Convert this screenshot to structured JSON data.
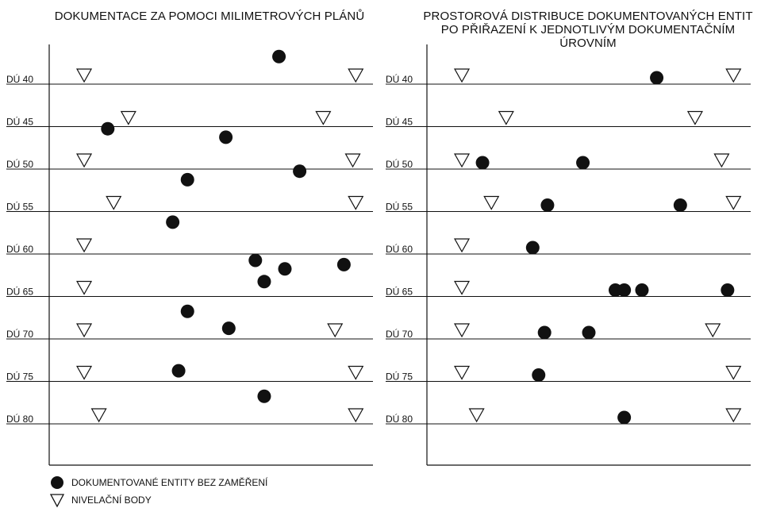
{
  "panels": [
    {
      "title": "DOKUMENTACE ZA POMOCI MILIMETROVÝCH PLÁNŮ",
      "levels": [
        "DÚ 40",
        "DÚ 45",
        "DÚ 50",
        "DÚ 55",
        "DÚ 60",
        "DÚ 65",
        "DÚ 70",
        "DÚ 75",
        "DÚ 80"
      ],
      "entities": [
        [
          0.73,
          -0.5
        ],
        [
          0.15,
          1.2
        ],
        [
          0.55,
          1.4
        ],
        [
          0.42,
          2.4
        ],
        [
          0.37,
          3.4
        ],
        [
          0.8,
          2.2
        ],
        [
          0.65,
          4.3
        ],
        [
          0.68,
          4.8
        ],
        [
          0.75,
          4.5
        ],
        [
          0.95,
          4.4
        ],
        [
          0.42,
          5.5
        ],
        [
          0.56,
          5.9
        ],
        [
          0.39,
          6.9
        ],
        [
          0.68,
          7.5
        ]
      ],
      "benchmarks": [
        [
          0.07,
          0
        ],
        [
          0.99,
          0
        ],
        [
          0.22,
          1
        ],
        [
          0.88,
          1
        ],
        [
          0.07,
          2
        ],
        [
          0.98,
          2
        ],
        [
          0.17,
          3
        ],
        [
          0.99,
          3
        ],
        [
          0.07,
          4
        ],
        [
          0.07,
          5
        ],
        [
          0.07,
          6
        ],
        [
          0.92,
          6
        ],
        [
          0.07,
          7
        ],
        [
          0.99,
          7
        ],
        [
          0.12,
          8
        ],
        [
          0.99,
          8
        ]
      ]
    },
    {
      "title": "PROSTOROVÁ DISTRIBUCE DOKUMENTOVANÝCH ENTIT PO PŘIŘAZENÍ K JEDNOTLIVÝM DOKUMENTAČNÍM ÚROVNÍM",
      "levels": [
        "DÚ 40",
        "DÚ 45",
        "DÚ 50",
        "DÚ 55",
        "DÚ 60",
        "DÚ 65",
        "DÚ 70",
        "DÚ 75",
        "DÚ 80"
      ],
      "entities": [
        [
          0.73,
          0
        ],
        [
          0.14,
          2
        ],
        [
          0.48,
          2
        ],
        [
          0.36,
          3
        ],
        [
          0.81,
          3
        ],
        [
          0.31,
          4
        ],
        [
          0.59,
          5
        ],
        [
          0.62,
          5
        ],
        [
          0.68,
          5
        ],
        [
          0.97,
          5
        ],
        [
          0.35,
          6
        ],
        [
          0.5,
          6
        ],
        [
          0.33,
          7
        ],
        [
          0.62,
          8
        ]
      ],
      "benchmarks": [
        [
          0.07,
          0
        ],
        [
          0.99,
          0
        ],
        [
          0.22,
          1
        ],
        [
          0.86,
          1
        ],
        [
          0.07,
          2
        ],
        [
          0.95,
          2
        ],
        [
          0.17,
          3
        ],
        [
          0.99,
          3
        ],
        [
          0.07,
          4
        ],
        [
          0.07,
          5
        ],
        [
          0.07,
          6
        ],
        [
          0.92,
          6
        ],
        [
          0.07,
          7
        ],
        [
          0.99,
          7
        ],
        [
          0.12,
          8
        ],
        [
          0.99,
          8
        ]
      ]
    }
  ],
  "legend": {
    "entities_label": "DOKUMENTOVANÉ ENTITY BEZ ZAMĚŘENÍ",
    "benchmarks_label": "NIVELAČNÍ BODY"
  },
  "colors": {
    "ink": "#111111",
    "background": "#ffffff"
  }
}
